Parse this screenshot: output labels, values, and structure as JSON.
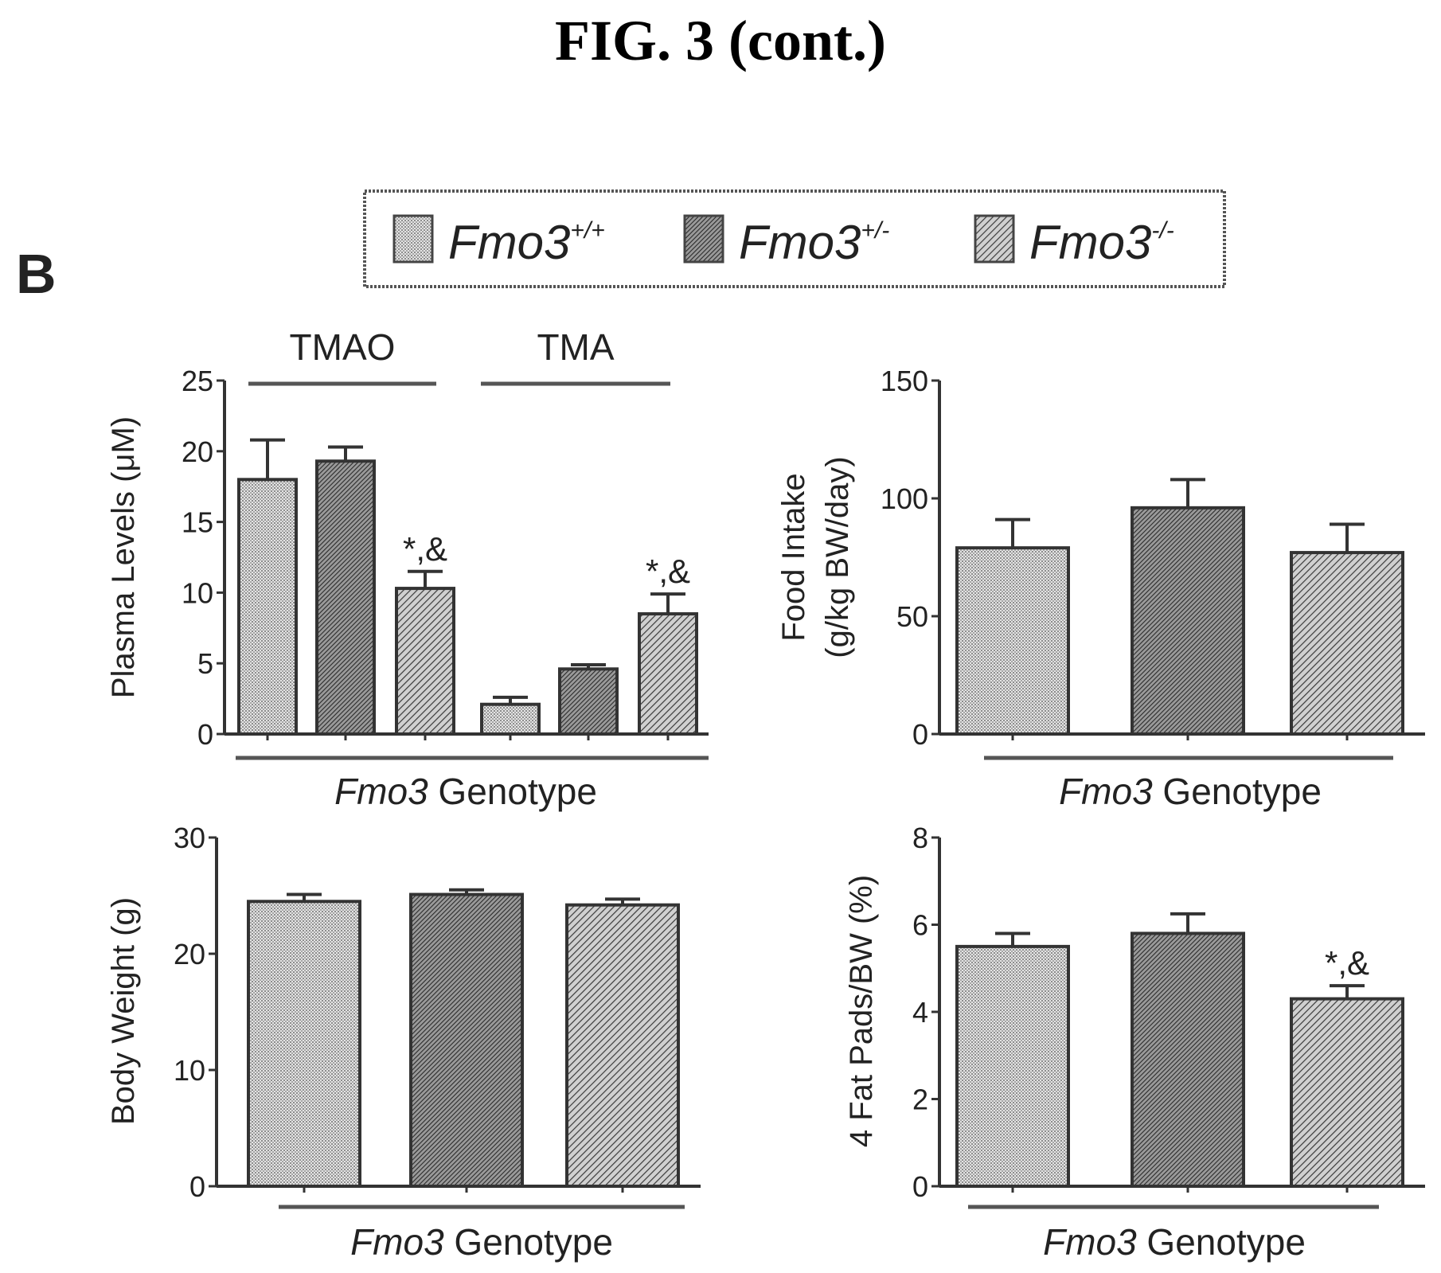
{
  "figure": {
    "title": "FIG. 3 (cont.)",
    "panel_label": "B"
  },
  "legend": {
    "entries": [
      {
        "base": "Fmo3",
        "sup": "+/+",
        "pattern": "dots"
      },
      {
        "base": "Fmo3",
        "sup": "+/-",
        "pattern": "dense"
      },
      {
        "base": "Fmo3",
        "sup": "-/-",
        "pattern": "hatch"
      }
    ]
  },
  "chart_data": [
    {
      "type": "bar",
      "id": "plasma",
      "title": "",
      "ylabel": "Plasma Levels (μM)",
      "xlabel_italic": "Fmo3",
      "xlabel_rest": " Genotype",
      "ylim": [
        0,
        25
      ],
      "yticks": [
        "0",
        "5",
        "10",
        "15",
        "20",
        "25"
      ],
      "group_labels": [
        "TMAO",
        "TMA"
      ],
      "series_patterns": [
        "dots",
        "dense",
        "hatch"
      ],
      "groups": [
        {
          "name": "TMAO",
          "values": [
            18,
            19.3,
            10.3
          ],
          "errors": [
            2.8,
            1.0,
            1.2
          ],
          "annotations": [
            "",
            "",
            "*,&"
          ]
        },
        {
          "name": "TMA",
          "values": [
            2.1,
            4.6,
            8.5
          ],
          "errors": [
            0.5,
            0.3,
            1.4
          ],
          "annotations": [
            "",
            "",
            "*,&"
          ]
        }
      ]
    },
    {
      "type": "bar",
      "id": "food",
      "title": "",
      "ylabel_line1": "Food Intake",
      "ylabel_line2": "(g/kg BW/day)",
      "xlabel_italic": "Fmo3",
      "xlabel_rest": " Genotype",
      "ylim": [
        0,
        150
      ],
      "yticks": [
        "0",
        "50",
        "100",
        "150"
      ],
      "series_patterns": [
        "dots",
        "dense",
        "hatch"
      ],
      "values": [
        79,
        96,
        77
      ],
      "errors": [
        12,
        12,
        12
      ],
      "annotations": [
        "",
        "",
        ""
      ]
    },
    {
      "type": "bar",
      "id": "body",
      "title": "",
      "ylabel": "Body Weight (g)",
      "xlabel_italic": "Fmo3",
      "xlabel_rest": " Genotype",
      "ylim": [
        0,
        30
      ],
      "yticks": [
        "0",
        "10",
        "20",
        "30"
      ],
      "series_patterns": [
        "dots",
        "dense",
        "hatch"
      ],
      "values": [
        24.5,
        25.1,
        24.2
      ],
      "errors": [
        0.6,
        0.4,
        0.5
      ],
      "annotations": [
        "",
        "",
        ""
      ]
    },
    {
      "type": "bar",
      "id": "fat",
      "title": "",
      "ylabel": "4 Fat Pads/BW (%)",
      "xlabel_italic": "Fmo3",
      "xlabel_rest": " Genotype",
      "ylim": [
        0,
        8
      ],
      "yticks": [
        "0",
        "2",
        "4",
        "6",
        "8"
      ],
      "series_patterns": [
        "dots",
        "dense",
        "hatch"
      ],
      "values": [
        5.5,
        5.8,
        4.3
      ],
      "errors": [
        0.3,
        0.45,
        0.3
      ],
      "annotations": [
        "",
        "",
        "*,&"
      ]
    }
  ]
}
